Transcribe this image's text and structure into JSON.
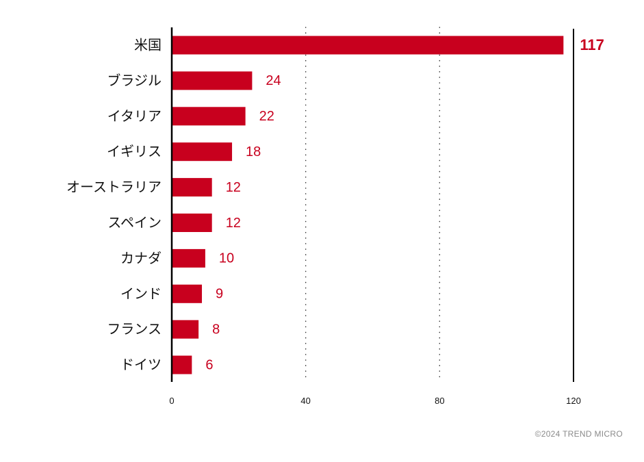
{
  "chart_data": {
    "type": "bar",
    "orientation": "horizontal",
    "categories": [
      "米国",
      "ブラジル",
      "イタリア",
      "イギリス",
      "オーストラリア",
      "スペイン",
      "カナダ",
      "インド",
      "フランス",
      "ドイツ"
    ],
    "values": [
      117,
      24,
      22,
      18,
      12,
      12,
      10,
      9,
      8,
      6
    ],
    "data_labels": [
      "117",
      "24",
      "22",
      "18",
      "12",
      "12",
      "10",
      "9",
      "8",
      "6"
    ],
    "xlim": [
      0,
      120
    ],
    "x_ticks": [
      0,
      40,
      80,
      120
    ],
    "x_tick_labels": [
      "0",
      "40",
      "80",
      "120"
    ],
    "grid": "vertical dotted",
    "title": "",
    "xlabel": "",
    "ylabel": ""
  },
  "colors": {
    "bar": "#C8001E",
    "label": "#C8001E",
    "axis": "#000000",
    "grid": "#333333",
    "text": "#111111",
    "footer": "#8a8a8a"
  },
  "footer": {
    "copyright": "©2024 TREND MICRO"
  }
}
